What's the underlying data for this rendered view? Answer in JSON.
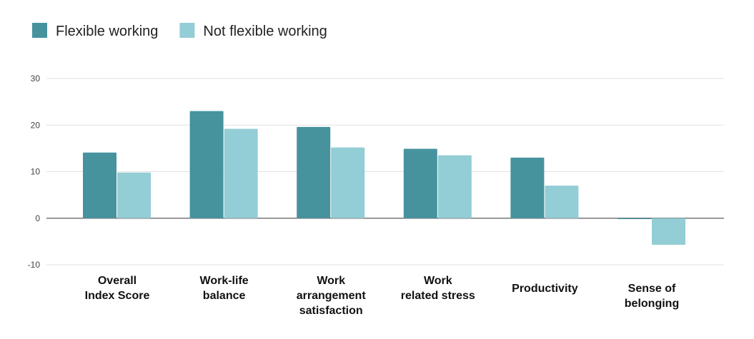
{
  "chart_data": {
    "type": "bar",
    "title": "",
    "xlabel": "",
    "ylabel": "",
    "ylim": [
      -10,
      30
    ],
    "yticks": [
      30,
      20,
      10,
      0,
      -10
    ],
    "grid": true,
    "legend_placement": "top-left",
    "categories": [
      [
        "Overall",
        "Index Score"
      ],
      [
        "Work-life",
        "balance"
      ],
      [
        "Work",
        "arrangement",
        "satisfaction"
      ],
      [
        "Work",
        "related stress"
      ],
      [
        "Productivity"
      ],
      [
        "Sense of",
        "belonging"
      ]
    ],
    "series": [
      {
        "name": "Flexible working",
        "color": "#46939e",
        "values": [
          14.1,
          23.0,
          19.6,
          14.9,
          13.0,
          -0.2
        ]
      },
      {
        "name": "Not flexible working",
        "color": "#93cdd5",
        "values": [
          9.8,
          19.2,
          15.2,
          13.5,
          7.0,
          -5.7
        ]
      }
    ]
  }
}
